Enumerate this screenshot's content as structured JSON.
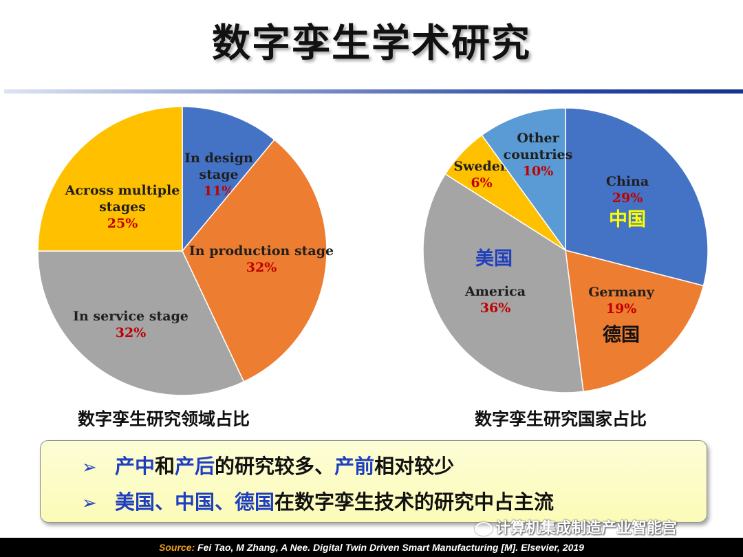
{
  "title": "数字孪生学术研究",
  "chart_data": [
    {
      "type": "pie",
      "caption": "数字孪生研究领域占比",
      "slices": [
        {
          "label_lines": [
            "In design",
            "stage"
          ],
          "pct_label": "11%",
          "value": 11,
          "color": "#4472c4"
        },
        {
          "label_lines": [
            "In production stage"
          ],
          "pct_label": "32%",
          "value": 32,
          "color": "#ed7d31"
        },
        {
          "label_lines": [
            "In service stage"
          ],
          "pct_label": "32%",
          "value": 32,
          "color": "#a5a5a5"
        },
        {
          "label_lines": [
            "Across multiple",
            "stages"
          ],
          "pct_label": "25%",
          "value": 25,
          "color": "#ffc000"
        }
      ]
    },
    {
      "type": "pie",
      "caption": "数字孪生研究国家占比",
      "slices": [
        {
          "label_lines": [
            "China"
          ],
          "pct_label": "29%",
          "value": 29,
          "color": "#4472c4",
          "cn_label": "中国",
          "cn_color": "#ffff00"
        },
        {
          "label_lines": [
            "Germany"
          ],
          "pct_label": "19%",
          "value": 19,
          "color": "#ed7d31",
          "cn_label": "德国",
          "cn_color": "#111111"
        },
        {
          "label_lines": [
            "America"
          ],
          "pct_label": "36%",
          "value": 36,
          "color": "#a5a5a5",
          "cn_label": "美国",
          "cn_color": "#1f3fbf"
        },
        {
          "label_lines": [
            "Sweden"
          ],
          "pct_label": "6%",
          "value": 6,
          "color": "#ffc000"
        },
        {
          "label_lines": [
            "Other",
            "countries"
          ],
          "pct_label": "10%",
          "value": 10,
          "color": "#5b9bd5"
        }
      ]
    }
  ],
  "summary": {
    "arrow": "➢",
    "bullet1": {
      "a": "产中",
      "b": "和",
      "c": "产后",
      "d": "的研究较多、",
      "e": "产前",
      "f": "相对较少"
    },
    "bullet2": {
      "a": "美国、中国、德国",
      "b": "在数字孪生技术的研究中占主流"
    }
  },
  "watermark": "计算机集成制造产业智能宫",
  "source": {
    "label": "Source:",
    "text": " Fei Tao, M Zhang, A Nee. Digital Twin Driven Smart Manufacturing [M]. Elsevier,  2019"
  },
  "colors": {
    "pct_text": "#c00000",
    "label_text": "#1f1f1f",
    "accent_blue": "#1f3fbf"
  }
}
